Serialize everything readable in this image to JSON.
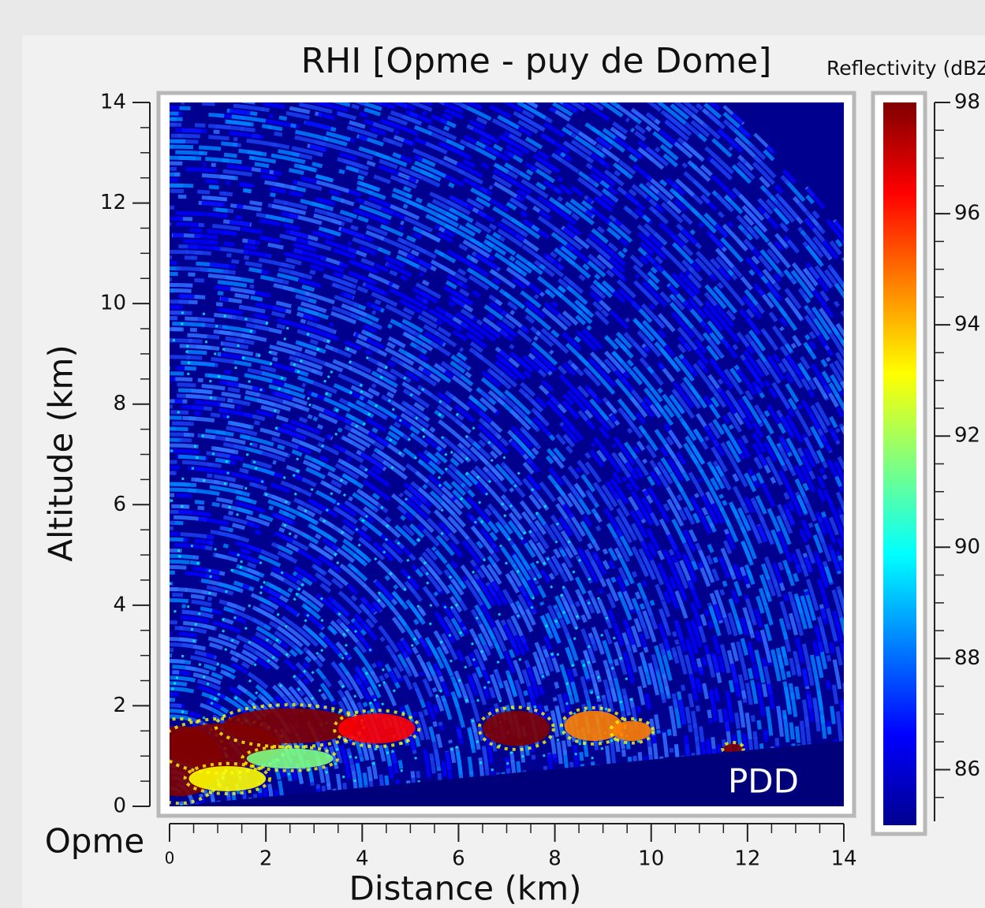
{
  "chart_data": {
    "type": "rhi",
    "title": "RHI [Opme - puy de Dome]",
    "x_label": "Distance (km)",
    "y_label": "Altitude (km)",
    "origin_label": "Opme",
    "target_label": "PDD",
    "colorbar_label": "Reflectivity (dBZ)",
    "xlim": [
      0,
      14
    ],
    "xticks": [
      0,
      2,
      4,
      6,
      8,
      10,
      12,
      14
    ],
    "ylim": [
      0,
      14
    ],
    "yticks": [
      0,
      2,
      4,
      6,
      8,
      10,
      12,
      14
    ],
    "clim": [
      85,
      98
    ],
    "cticks": [
      86,
      88,
      90,
      92,
      94,
      96,
      98
    ],
    "colormap": [
      "#00008f",
      "#0000ff",
      "#0080ff",
      "#00ffff",
      "#80ff80",
      "#ffff00",
      "#ff8000",
      "#ff0000",
      "#800000"
    ]
  }
}
